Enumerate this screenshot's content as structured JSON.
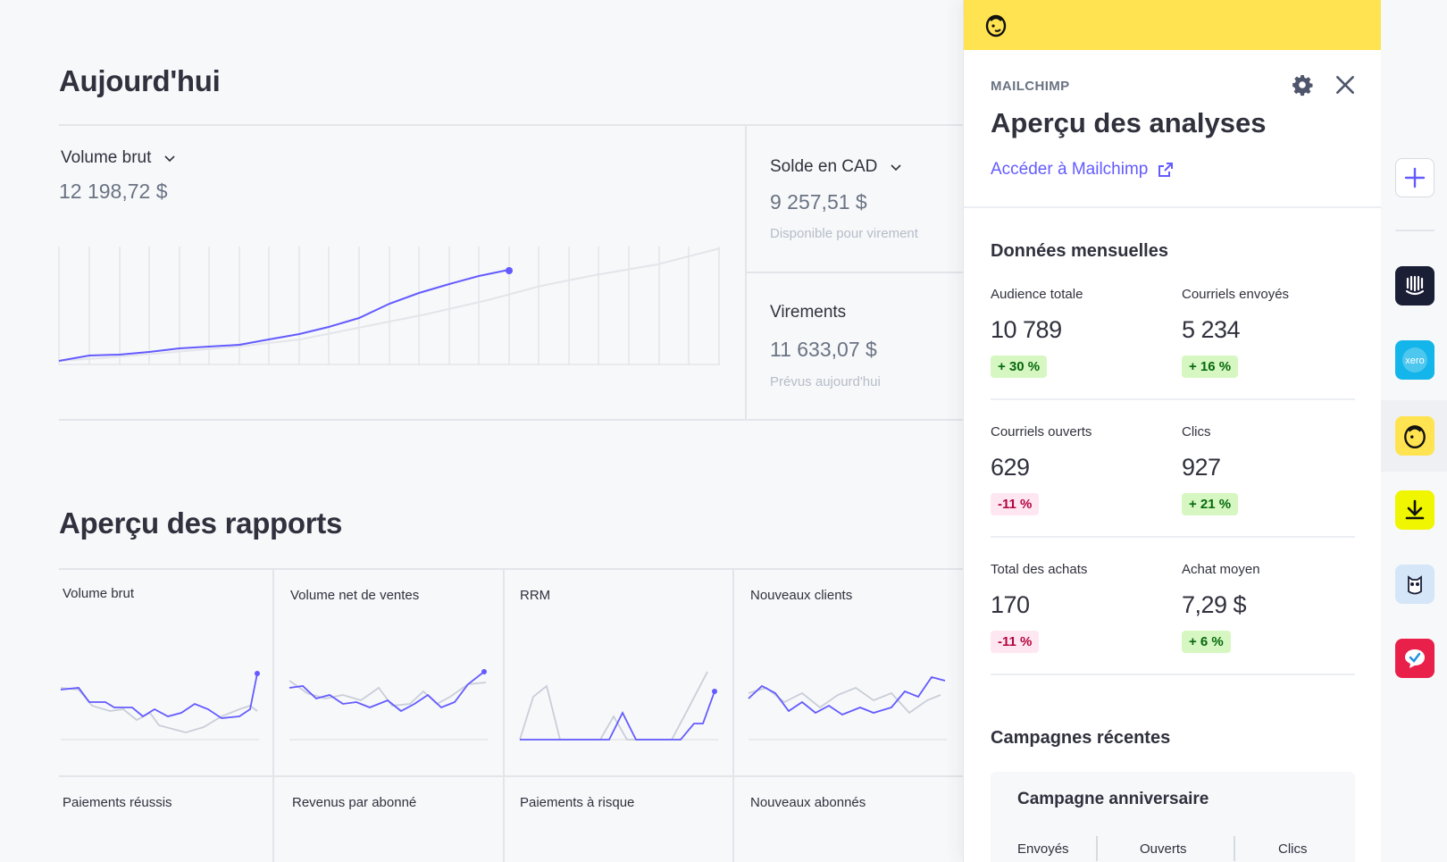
{
  "dashboard": {
    "today_title": "Aujourd'hui",
    "gross_volume": {
      "label": "Volume brut",
      "value": "12 198,72 $"
    },
    "balance": {
      "label": "Solde en CAD",
      "value": "9 257,51 $",
      "sub": "Disponible pour virement"
    },
    "payouts": {
      "label": "Virements",
      "value": "11 633,07 $",
      "sub": "Prévus aujourd'hui"
    },
    "reports_title": "Aperçu des rapports",
    "reports_row1": [
      "Volume brut",
      "Volume net de ventes",
      "RRM",
      "Nouveaux clients"
    ],
    "reports_row2": [
      "Paiements réussis",
      "Revenus par abonné",
      "Paiements à risque",
      "Nouveaux abonnés"
    ]
  },
  "panel": {
    "kicker": "MAILCHIMP",
    "title": "Aperçu des analyses",
    "link": "Accéder à Mailchimp",
    "monthly_title": "Données mensuelles",
    "stats": [
      {
        "label": "Audience totale",
        "value": "10 789",
        "change": "+ 30 %",
        "trend": "up"
      },
      {
        "label": "Courriels envoyés",
        "value": "5 234",
        "change": "+ 16 %",
        "trend": "up"
      },
      {
        "label": "Courriels ouverts",
        "value": "629",
        "change": "-11 %",
        "trend": "down"
      },
      {
        "label": "Clics",
        "value": "927",
        "change": "+ 21 %",
        "trend": "up"
      },
      {
        "label": "Total des achats",
        "value": "170",
        "change": "-11 %",
        "trend": "down"
      },
      {
        "label": "Achat moyen",
        "value": "7,29 $",
        "change": "+ 6 %",
        "trend": "up"
      }
    ],
    "recent_title": "Campagnes récentes",
    "campaign": {
      "title": "Campagne anniversaire",
      "cols": [
        "Envoyés",
        "Ouverts",
        "Clics"
      ]
    }
  },
  "colors": {
    "accent": "#635bff",
    "mailchimp_yellow": "#ffe350",
    "up_bg": "#d7f7c2",
    "down_bg": "#ffe7f2"
  },
  "rail_icons": [
    "plus-icon",
    "intercom-icon",
    "xero-icon",
    "mailchimp-icon",
    "download-icon",
    "owl-icon",
    "chat-check-icon"
  ]
}
